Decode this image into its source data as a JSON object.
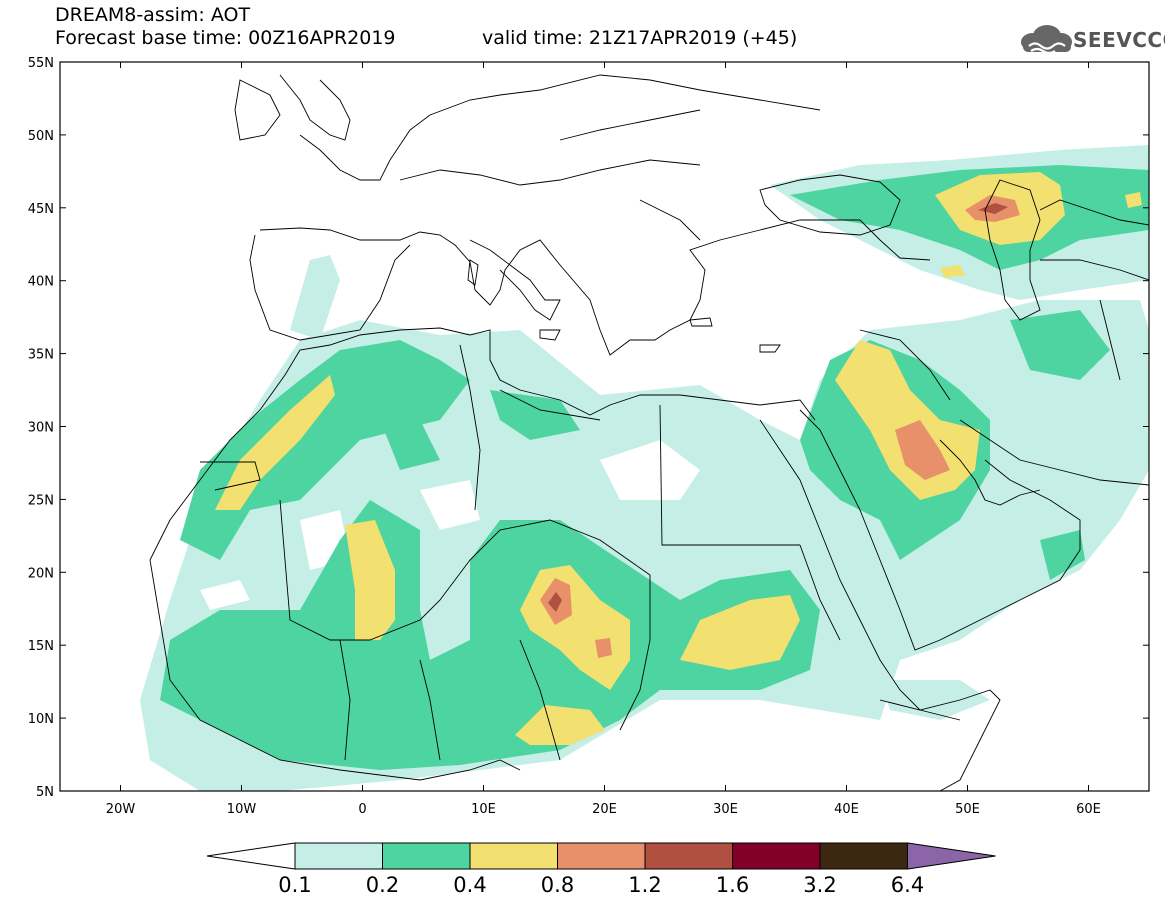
{
  "title": {
    "model": "DREAM8-assim: AOT",
    "base_time": "Forecast base time: 00Z16APR2019",
    "valid_time": "valid time: 21Z17APR2019 (+45)"
  },
  "logo": {
    "text": "SEEVCCC",
    "icon": "cloud-icon"
  },
  "map": {
    "lat_labels": [
      "55N",
      "50N",
      "45N",
      "40N",
      "35N",
      "30N",
      "25N",
      "20N",
      "15N",
      "10N",
      "5N"
    ],
    "lon_labels": [
      "20W",
      "10W",
      "0",
      "10E",
      "20E",
      "30E",
      "40E",
      "50E",
      "60E"
    ],
    "extent": {
      "lon_min": -25,
      "lon_max": 65,
      "lat_min": 5,
      "lat_max": 55
    }
  },
  "legend": {
    "levels": [
      "0.1",
      "0.2",
      "0.4",
      "0.8",
      "1.2",
      "1.6",
      "3.2",
      "6.4"
    ],
    "colors": [
      "#ffffff",
      "#c4eee6",
      "#4ed4a0",
      "#f2e070",
      "#e8906a",
      "#b05040",
      "#800028",
      "#3c2810",
      "#8c64a8"
    ]
  }
}
